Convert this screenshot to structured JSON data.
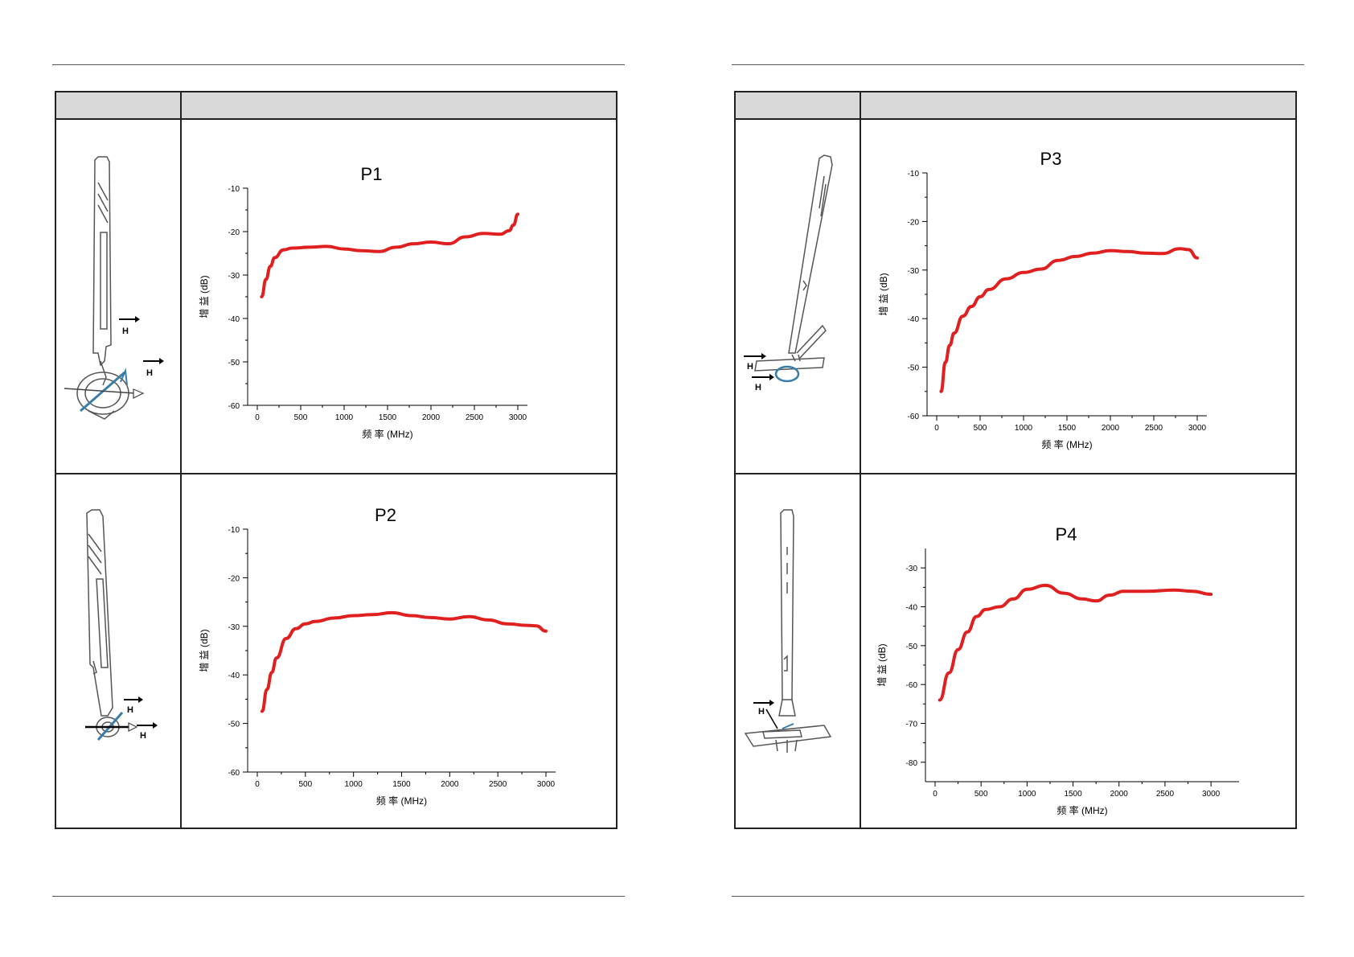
{
  "pages": [
    {
      "charts": [
        {
          "chart_data": {
            "type": "line",
            "title": "P1",
            "xlabel": "频 率 (MHz)",
            "ylabel": "增 益 (dB)",
            "xlim": [
              0,
              3000
            ],
            "ylim": [
              -60,
              -10
            ],
            "xticks": [
              "0",
              "500",
              "1000",
              "1500",
              "2000",
              "2500",
              "3000"
            ],
            "yticks": [
              "-10",
              "-20",
              "-30",
              "-40",
              "-50",
              "-60"
            ],
            "grid": false,
            "color": "#e02020",
            "x": [
              50,
              100,
              150,
              200,
              300,
              400,
              600,
              800,
              1000,
              1200,
              1400,
              1600,
              1800,
              2000,
              2200,
              2400,
              2600,
              2800,
              2900,
              2950,
              3000
            ],
            "y": [
              -35,
              -31,
              -28,
              -26,
              -24.2,
              -23.8,
              -23.6,
              -23.4,
              -24,
              -24.4,
              -24.6,
              -23.6,
              -22.8,
              -22.4,
              -22.8,
              -21.2,
              -20.4,
              -20.6,
              -19.8,
              -18.5,
              -16
            ]
          },
          "probe": {
            "field_label": "H"
          }
        },
        {
          "chart_data": {
            "type": "line",
            "title": "P2",
            "xlabel": "频 率 (MHz)",
            "ylabel": "增 益 (dB)",
            "xlim": [
              0,
              3000
            ],
            "ylim": [
              -60,
              -10
            ],
            "xticks": [
              "0",
              "500",
              "1000",
              "1500",
              "2000",
              "2500",
              "3000"
            ],
            "yticks": [
              "-10",
              "-20",
              "-30",
              "-40",
              "-50",
              "-60"
            ],
            "grid": false,
            "color": "#e02020",
            "x": [
              50,
              100,
              150,
              200,
              300,
              400,
              500,
              600,
              800,
              1000,
              1200,
              1400,
              1600,
              1800,
              2000,
              2200,
              2400,
              2600,
              2800,
              2900,
              3000
            ],
            "y": [
              -47.5,
              -43,
              -39.5,
              -36.5,
              -32.5,
              -30.5,
              -29.5,
              -29,
              -28.3,
              -27.8,
              -27.6,
              -27.2,
              -27.8,
              -28.2,
              -28.5,
              -28,
              -28.7,
              -29.5,
              -29.8,
              -29.9,
              -31
            ]
          },
          "probe": {
            "field_label": "H"
          }
        }
      ]
    },
    {
      "charts": [
        {
          "chart_data": {
            "type": "line",
            "title": "P3",
            "xlabel": "频 率 (MHz)",
            "ylabel": "增 益 (dB)",
            "xlim": [
              0,
              3000
            ],
            "ylim": [
              -60,
              -10
            ],
            "xticks": [
              "0",
              "500",
              "1000",
              "1500",
              "2000",
              "2500",
              "3000"
            ],
            "yticks": [
              "-10",
              "-20",
              "-30",
              "-40",
              "-50",
              "-60"
            ],
            "grid": false,
            "color": "#e02020",
            "x": [
              50,
              100,
              150,
              200,
              300,
              400,
              500,
              600,
              800,
              1000,
              1200,
              1400,
              1600,
              1800,
              2000,
              2200,
              2400,
              2600,
              2800,
              2900,
              3000
            ],
            "y": [
              -55,
              -49,
              -45.5,
              -43,
              -39.5,
              -37.5,
              -35.5,
              -34,
              -31.8,
              -30.5,
              -29.8,
              -28,
              -27.2,
              -26.5,
              -26,
              -26.2,
              -26.5,
              -26.6,
              -25.6,
              -25.8,
              -27.5
            ]
          },
          "probe": {
            "field_label": "H"
          }
        },
        {
          "chart_data": {
            "type": "line",
            "title": "P4",
            "xlabel": "频 率 (MHz)",
            "ylabel": "增 益 (dB)",
            "xlim": [
              0,
              3200
            ],
            "ylim": [
              -85,
              -25
            ],
            "xticks": [
              "0",
              "500",
              "1000",
              "1500",
              "2000",
              "2500",
              "3000"
            ],
            "yticks": [
              "-30",
              "-40",
              "-50",
              "-60",
              "-70",
              "-80"
            ],
            "grid": false,
            "color": "#e02020",
            "x": [
              50,
              150,
              250,
              350,
              450,
              550,
              700,
              850,
              1000,
              1200,
              1400,
              1600,
              1750,
              1900,
              2050,
              2300,
              2600,
              2800,
              3000
            ],
            "y": [
              -64,
              -57,
              -51,
              -46.5,
              -42.5,
              -40.7,
              -40,
              -38,
              -35.5,
              -34.5,
              -36.5,
              -38,
              -38.5,
              -37,
              -36,
              -36,
              -35.7,
              -36,
              -36.8
            ]
          },
          "probe": {
            "field_label": "H"
          }
        }
      ]
    }
  ]
}
